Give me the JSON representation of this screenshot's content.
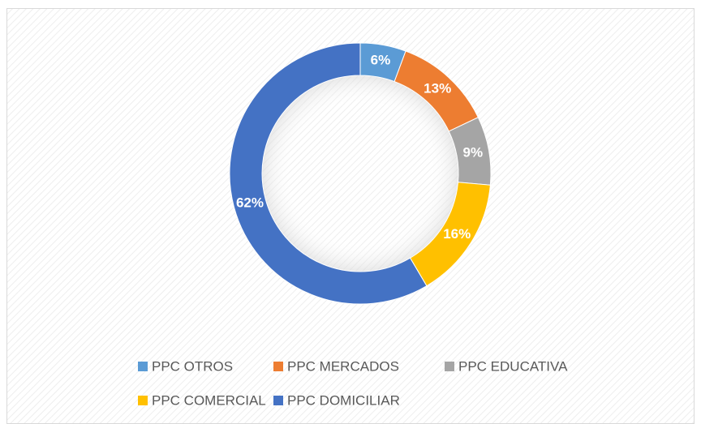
{
  "chart_data": {
    "type": "donut",
    "categories": [
      "PPC OTROS",
      "PPC MERCADOS",
      "PPC EDUCATIVA",
      "PPC COMERCIAL",
      "PPC DOMICILIAR"
    ],
    "values": [
      6,
      13,
      9,
      16,
      62
    ],
    "value_labels": [
      "6%",
      "13%",
      "9%",
      "16%",
      "62%"
    ],
    "colors": [
      "#5B9BD5",
      "#ED7D31",
      "#A5A5A5",
      "#FFC000",
      "#4472C4"
    ],
    "legend": "bottom"
  }
}
